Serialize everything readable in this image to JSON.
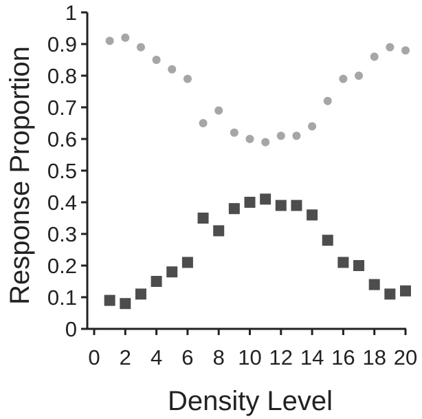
{
  "chart_data": {
    "type": "scatter",
    "title": "",
    "xlabel": "Density Level",
    "ylabel": "Response Proportion",
    "xlim": [
      0,
      20
    ],
    "ylim": [
      0,
      1
    ],
    "x_ticks": [
      "0",
      "2",
      "4",
      "6",
      "8",
      "10",
      "12",
      "14",
      "16",
      "18",
      "20"
    ],
    "y_ticks": [
      "0",
      "0.1",
      "0.2",
      "0.3",
      "0.4",
      "0.5",
      "0.6",
      "0.7",
      "0.8",
      "0.9",
      "1"
    ],
    "grid": false,
    "legend": "none",
    "series": [
      {
        "marker": "circle",
        "color": "#a6a6a6",
        "x": [
          1,
          2,
          3,
          4,
          5,
          6,
          7,
          8,
          9,
          10,
          11,
          12,
          13,
          14,
          15,
          16,
          17,
          18,
          19,
          20
        ],
        "values": [
          0.91,
          0.92,
          0.89,
          0.85,
          0.82,
          0.79,
          0.65,
          0.69,
          0.62,
          0.6,
          0.59,
          0.61,
          0.61,
          0.64,
          0.72,
          0.79,
          0.8,
          0.86,
          0.89,
          0.88
        ]
      },
      {
        "marker": "square",
        "color": "#4d4d4d",
        "x": [
          1,
          2,
          3,
          4,
          5,
          6,
          7,
          8,
          9,
          10,
          11,
          12,
          13,
          14,
          15,
          16,
          17,
          18,
          19,
          20
        ],
        "values": [
          0.09,
          0.08,
          0.11,
          0.15,
          0.18,
          0.21,
          0.35,
          0.31,
          0.38,
          0.4,
          0.41,
          0.39,
          0.39,
          0.36,
          0.28,
          0.21,
          0.2,
          0.14,
          0.11,
          0.12
        ]
      }
    ]
  }
}
